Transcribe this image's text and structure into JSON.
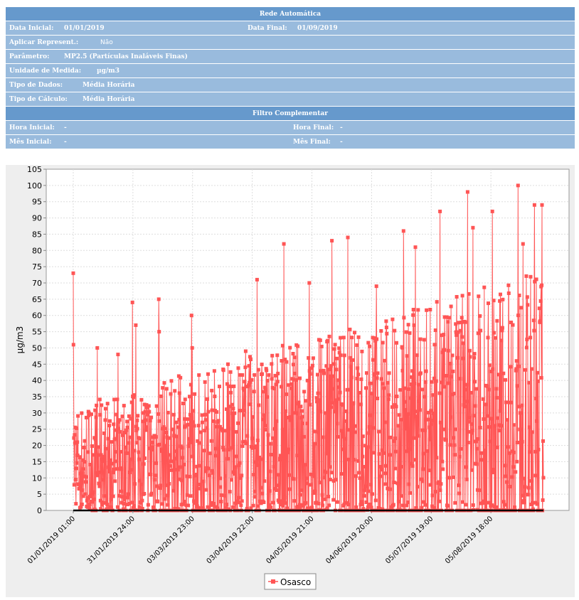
{
  "params": {
    "header": "Rede Automática",
    "data_inicial_label": "Data Inicial:",
    "data_inicial": "01/01/2019",
    "data_final_label": "Data Final:",
    "data_final": "01/09/2019",
    "aplicar_label": "Aplicar Represent.:",
    "aplicar": "Não",
    "parametro_label": "Parâmetro:",
    "parametro": "MP2.5 (Partículas Inaláveis Finas)",
    "unidade_label": "Unidade de Medida:",
    "unidade": "µg/m3",
    "tipo_dados_label": "Tipo de Dados:",
    "tipo_dados": "Média Horária",
    "tipo_calculo_label": "Tipo de Cálculo:",
    "tipo_calculo": "Média Horária",
    "filtro_header": "Filtro Complementar",
    "hora_inicial_label": "Hora Inicial:",
    "hora_inicial": "-",
    "hora_final_label": "Hora Final:",
    "hora_final": "-",
    "mes_inicial_label": "Mês Inicial:",
    "mes_inicial": "-",
    "mes_final_label": "Mês Final:",
    "mes_final": "-"
  },
  "chart_data": {
    "type": "line",
    "title": "",
    "xlabel": "",
    "ylabel": "µg/m3",
    "ylim": [
      0,
      105
    ],
    "yticks": [
      0,
      5,
      10,
      15,
      20,
      25,
      30,
      35,
      40,
      45,
      50,
      55,
      60,
      65,
      70,
      75,
      80,
      85,
      90,
      95,
      100,
      105
    ],
    "x_tick_labels": [
      "01/01/2019 01:00",
      "31/01/2019 24:00",
      "03/03/2019 23:00",
      "03/04/2019 22:00",
      "04/05/2019 21:00",
      "04/06/2019 20:00",
      "05/07/2019 19:00",
      "05/08/2019 18:00"
    ],
    "x_range": [
      "01/01/2019 01:00",
      "01/09/2019 24:00"
    ],
    "grid": true,
    "legend_position": "bottom-center",
    "series": [
      {
        "name": "Osasco",
        "color": "#ff5555",
        "marker": "square",
        "peaks": [
          {
            "x": "01/01/2019 01:00",
            "y": 73
          },
          {
            "x": "01/01/2019 04:00",
            "y": 51
          },
          {
            "x": "13/01/2019 12:00",
            "y": 50
          },
          {
            "x": "24/01/2019 06:00",
            "y": 48
          },
          {
            "x": "31/01/2019 18:00",
            "y": 64
          },
          {
            "x": "02/02/2019 12:00",
            "y": 57
          },
          {
            "x": "14/02/2019 10:00",
            "y": 65
          },
          {
            "x": "14/02/2019 14:00",
            "y": 55
          },
          {
            "x": "03/03/2019 10:00",
            "y": 60
          },
          {
            "x": "03/03/2019 18:00",
            "y": 50
          },
          {
            "x": "22/03/2019 08:00",
            "y": 45
          },
          {
            "x": "31/03/2019 12:00",
            "y": 49
          },
          {
            "x": "06/04/2019 10:00",
            "y": 71
          },
          {
            "x": "20/04/2019 08:00",
            "y": 82
          },
          {
            "x": "03/05/2019 12:00",
            "y": 70
          },
          {
            "x": "15/05/2019 06:00",
            "y": 83
          },
          {
            "x": "23/05/2019 12:00",
            "y": 84
          },
          {
            "x": "07/06/2019 08:00",
            "y": 69
          },
          {
            "x": "21/06/2019 10:00",
            "y": 86
          },
          {
            "x": "27/06/2019 14:00",
            "y": 81
          },
          {
            "x": "10/07/2019 08:00",
            "y": 92
          },
          {
            "x": "24/07/2019 16:00",
            "y": 98
          },
          {
            "x": "27/07/2019 10:00",
            "y": 87
          },
          {
            "x": "06/08/2019 12:00",
            "y": 92
          },
          {
            "x": "19/08/2019 20:00",
            "y": 100
          },
          {
            "x": "22/08/2019 10:00",
            "y": 82
          },
          {
            "x": "28/08/2019 08:00",
            "y": 94
          },
          {
            "x": "01/09/2019 06:00",
            "y": 94
          }
        ],
        "min_value": 0
      }
    ]
  }
}
